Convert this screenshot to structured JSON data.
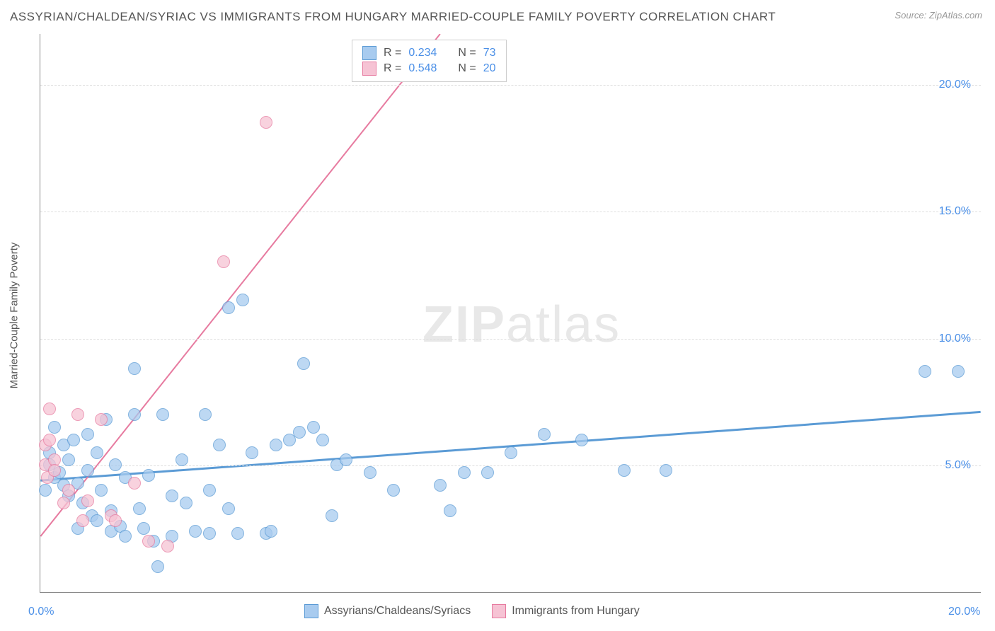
{
  "title": "ASSYRIAN/CHALDEAN/SYRIAC VS IMMIGRANTS FROM HUNGARY MARRIED-COUPLE FAMILY POVERTY CORRELATION CHART",
  "source": "Source: ZipAtlas.com",
  "y_axis_title": "Married-Couple Family Poverty",
  "watermark_bold": "ZIP",
  "watermark_light": "atlas",
  "chart": {
    "type": "scatter",
    "xlim": [
      0,
      20
    ],
    "ylim": [
      0,
      22
    ],
    "y_ticks": [
      5.0,
      10.0,
      15.0,
      20.0
    ],
    "y_tick_labels": [
      "5.0%",
      "10.0%",
      "15.0%",
      "20.0%"
    ],
    "x_tick_min": "0.0%",
    "x_tick_max": "20.0%",
    "background_color": "#ffffff",
    "grid_color": "#dddddd",
    "axis_color": "#888888",
    "tick_label_color": "#4a8fe7",
    "marker_radius": 9,
    "marker_stroke_width": 1.5,
    "marker_fill_opacity": 0.35,
    "series": [
      {
        "name": "Assyrians/Chaldeans/Syriacs",
        "color_stroke": "#5b9bd5",
        "color_fill": "#a8cbef",
        "regression": {
          "x1": 0,
          "y1": 4.4,
          "x2": 20,
          "y2": 7.1,
          "stroke_width": 3,
          "dash": "none"
        },
        "R": "0.234",
        "N": "73",
        "points": [
          [
            0.1,
            4.0
          ],
          [
            0.2,
            5.5
          ],
          [
            0.2,
            5.0
          ],
          [
            0.3,
            4.5
          ],
          [
            0.3,
            6.5
          ],
          [
            0.4,
            4.7
          ],
          [
            0.5,
            4.2
          ],
          [
            0.5,
            5.8
          ],
          [
            0.6,
            3.8
          ],
          [
            0.6,
            5.2
          ],
          [
            0.7,
            6.0
          ],
          [
            0.8,
            4.3
          ],
          [
            0.8,
            2.5
          ],
          [
            0.9,
            3.5
          ],
          [
            1.0,
            4.8
          ],
          [
            1.0,
            6.2
          ],
          [
            1.1,
            3.0
          ],
          [
            1.2,
            5.5
          ],
          [
            1.2,
            2.8
          ],
          [
            1.3,
            4.0
          ],
          [
            1.4,
            6.8
          ],
          [
            1.5,
            3.2
          ],
          [
            1.5,
            2.4
          ],
          [
            1.6,
            5.0
          ],
          [
            1.7,
            2.6
          ],
          [
            1.8,
            4.5
          ],
          [
            1.8,
            2.2
          ],
          [
            2.0,
            8.8
          ],
          [
            2.0,
            7.0
          ],
          [
            2.1,
            3.3
          ],
          [
            2.2,
            2.5
          ],
          [
            2.3,
            4.6
          ],
          [
            2.4,
            2.0
          ],
          [
            2.5,
            1.0
          ],
          [
            2.6,
            7.0
          ],
          [
            2.8,
            3.8
          ],
          [
            2.8,
            2.2
          ],
          [
            3.0,
            5.2
          ],
          [
            3.1,
            3.5
          ],
          [
            3.3,
            2.4
          ],
          [
            3.5,
            7.0
          ],
          [
            3.6,
            4.0
          ],
          [
            3.6,
            2.3
          ],
          [
            3.8,
            5.8
          ],
          [
            4.0,
            3.3
          ],
          [
            4.0,
            11.2
          ],
          [
            4.2,
            2.3
          ],
          [
            4.3,
            11.5
          ],
          [
            4.5,
            5.5
          ],
          [
            4.8,
            2.3
          ],
          [
            4.9,
            2.4
          ],
          [
            5.0,
            5.8
          ],
          [
            5.3,
            6.0
          ],
          [
            5.5,
            6.3
          ],
          [
            5.6,
            9.0
          ],
          [
            5.8,
            6.5
          ],
          [
            6.0,
            6.0
          ],
          [
            6.2,
            3.0
          ],
          [
            6.3,
            5.0
          ],
          [
            6.5,
            5.2
          ],
          [
            7.0,
            4.7
          ],
          [
            7.5,
            4.0
          ],
          [
            8.5,
            4.2
          ],
          [
            8.7,
            3.2
          ],
          [
            9.0,
            4.7
          ],
          [
            9.5,
            4.7
          ],
          [
            10.0,
            5.5
          ],
          [
            10.7,
            6.2
          ],
          [
            11.5,
            6.0
          ],
          [
            12.4,
            4.8
          ],
          [
            13.3,
            4.8
          ],
          [
            18.8,
            8.7
          ],
          [
            19.5,
            8.7
          ]
        ]
      },
      {
        "name": "Immigrants from Hungary",
        "color_stroke": "#e77ba0",
        "color_fill": "#f6c3d4",
        "regression": {
          "x1": 0,
          "y1": 2.2,
          "x2": 8.5,
          "y2": 22,
          "stroke_width": 2,
          "dash": "none",
          "dash_ext": [
            8.5,
            22,
            20,
            48
          ]
        },
        "R": "0.548",
        "N": "20",
        "points": [
          [
            0.1,
            5.0
          ],
          [
            0.1,
            5.8
          ],
          [
            0.15,
            4.5
          ],
          [
            0.2,
            7.2
          ],
          [
            0.2,
            6.0
          ],
          [
            0.3,
            5.2
          ],
          [
            0.3,
            4.8
          ],
          [
            0.5,
            3.5
          ],
          [
            0.6,
            4.0
          ],
          [
            0.8,
            7.0
          ],
          [
            0.9,
            2.8
          ],
          [
            1.0,
            3.6
          ],
          [
            1.3,
            6.8
          ],
          [
            1.5,
            3.0
          ],
          [
            1.6,
            2.8
          ],
          [
            2.0,
            4.3
          ],
          [
            2.3,
            2.0
          ],
          [
            2.7,
            1.8
          ],
          [
            3.9,
            13.0
          ],
          [
            4.8,
            18.5
          ]
        ]
      }
    ]
  },
  "stats_legend": {
    "rows": [
      {
        "swatch_fill": "#a8cbef",
        "swatch_stroke": "#5b9bd5",
        "r_label": "R =",
        "r_val": "0.234",
        "n_label": "N =",
        "n_val": "73"
      },
      {
        "swatch_fill": "#f6c3d4",
        "swatch_stroke": "#e77ba0",
        "r_label": "R =",
        "r_val": "0.548",
        "n_label": "N =",
        "n_val": "20"
      }
    ]
  },
  "bottom_legend": {
    "items": [
      {
        "swatch_fill": "#a8cbef",
        "swatch_stroke": "#5b9bd5",
        "label": "Assyrians/Chaldeans/Syriacs"
      },
      {
        "swatch_fill": "#f6c3d4",
        "swatch_stroke": "#e77ba0",
        "label": "Immigrants from Hungary"
      }
    ]
  }
}
